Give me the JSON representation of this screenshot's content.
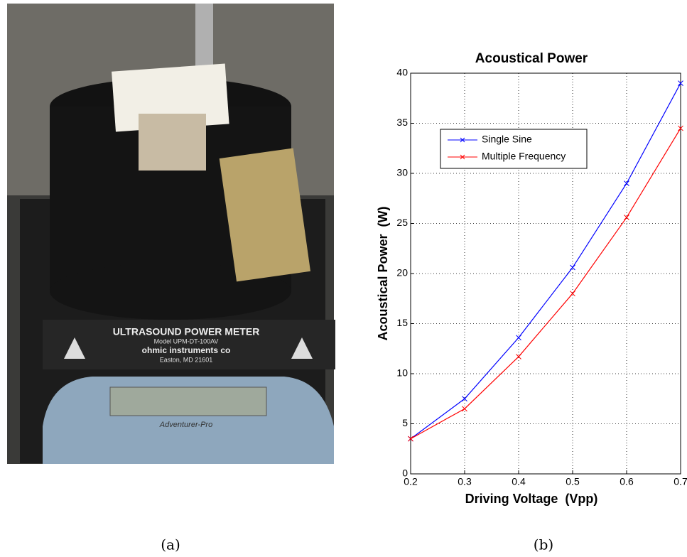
{
  "chart_data": {
    "type": "line",
    "title": "Acoustical Power",
    "x_label": "Driving Voltage  (Vpp)",
    "y_label": "Acoustical Power  (W)",
    "x": [
      0.2,
      0.3,
      0.4,
      0.5,
      0.6,
      0.7
    ],
    "series": [
      {
        "name": "Single Sine",
        "color": "#0000ff",
        "values": [
          3.5,
          7.5,
          13.6,
          20.6,
          29,
          39
        ]
      },
      {
        "name": "Multiple Frequency",
        "color": "#ff0000",
        "values": [
          3.5,
          6.5,
          11.7,
          18,
          25.6,
          34.5
        ]
      }
    ],
    "xlim": [
      0.2,
      0.7
    ],
    "xticks": [
      0.2,
      0.3,
      0.4,
      0.5,
      0.6,
      0.7
    ],
    "ylim": [
      0,
      40
    ],
    "yticks": [
      0,
      5,
      10,
      15,
      20,
      25,
      30,
      35,
      40
    ],
    "grid": true,
    "legend": "upper-left"
  },
  "photo": {
    "labels": [
      "ULTRASOUND POWER METER",
      "Model UPM-DT-100AV",
      "ohmic instruments co",
      "Easton, MD 21601",
      "Adventurer-Pro"
    ]
  },
  "captions": {
    "a": "(a)",
    "b": "(b)"
  }
}
